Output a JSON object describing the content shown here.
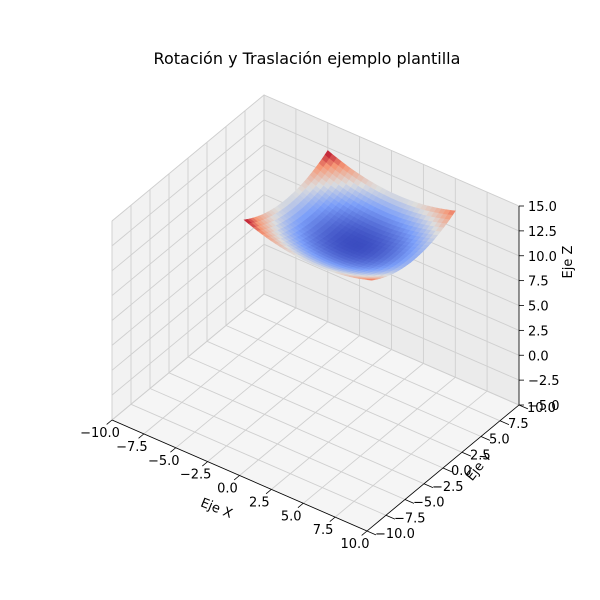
{
  "chart_data": {
    "type": "surface3d",
    "title": "Rotación y Traslación ejemplo plantilla",
    "xlabel": "Eje X",
    "ylabel": "Eje Y",
    "zlabel": "Eje Z",
    "xlim": [
      -10,
      10
    ],
    "ylim": [
      -10,
      10
    ],
    "zlim": [
      -5,
      15
    ],
    "x_ticks": [
      "−10.0",
      "−7.5",
      "−5.0",
      "−2.5",
      "0.0",
      "2.5",
      "5.0",
      "7.5",
      "10.0"
    ],
    "y_ticks": [
      "−10.0",
      "−7.5",
      "−5.0",
      "−2.5",
      "0.0",
      "2.5",
      "5.0",
      "7.5",
      "10.0"
    ],
    "z_ticks": [
      "−5.0",
      "−2.5",
      "0.0",
      "2.5",
      "5.0",
      "7.5",
      "10.0",
      "12.5",
      "15.0"
    ],
    "surface": {
      "center": [
        0.5,
        4.5
      ],
      "x_range": [
        -5,
        5
      ],
      "y_range": [
        -1,
        10
      ],
      "z_min": 9.3,
      "z_max": 12.2,
      "colormap": "coolwarm"
    },
    "grid": true
  }
}
